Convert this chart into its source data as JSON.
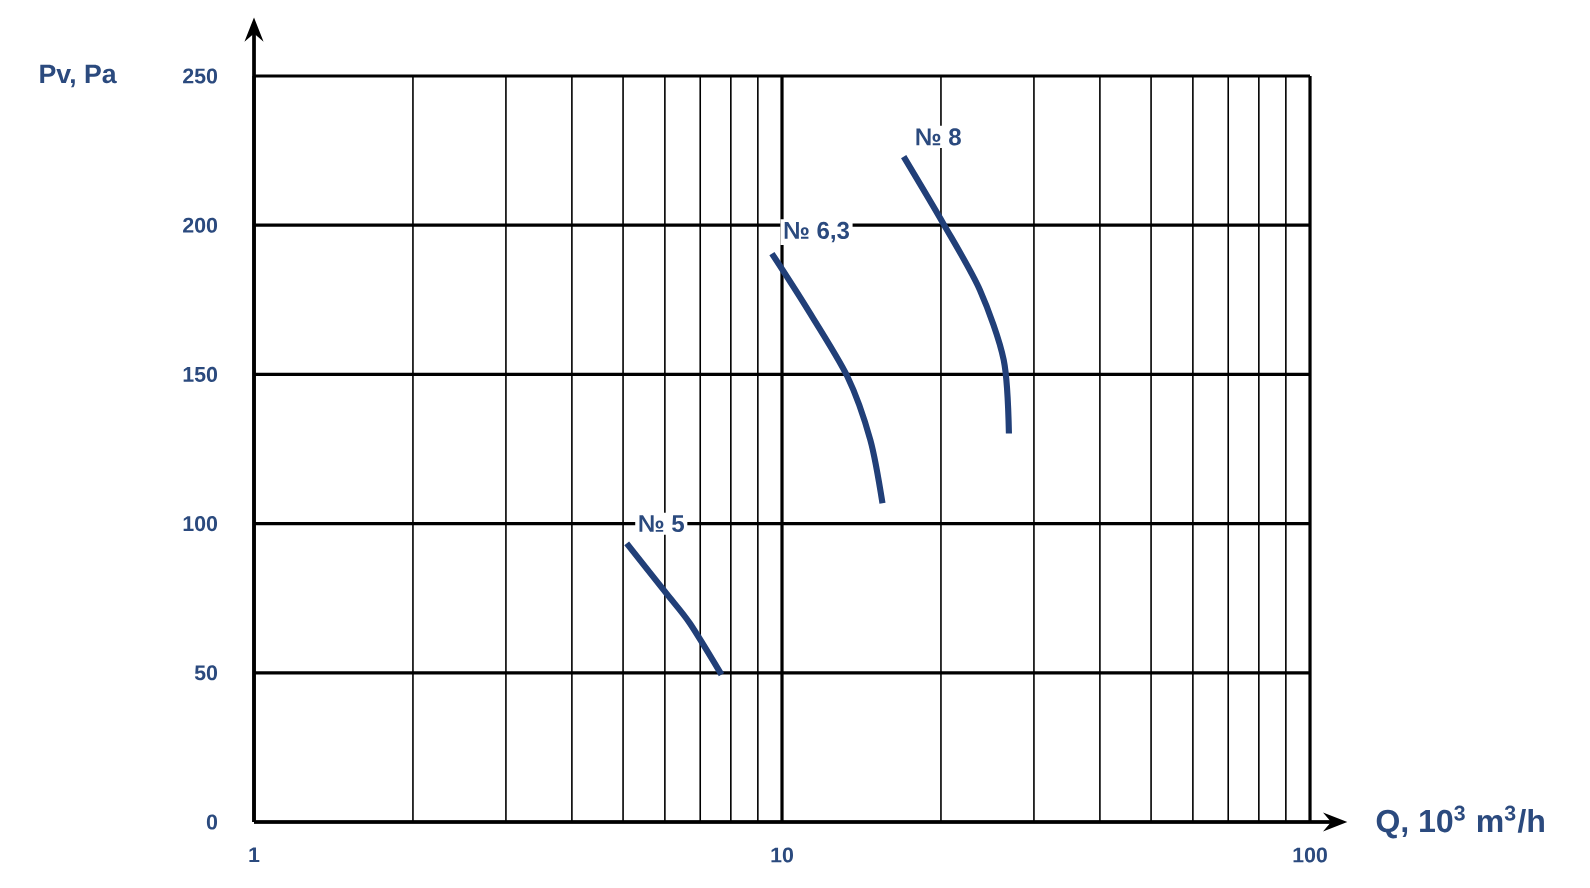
{
  "chart_data": {
    "type": "line",
    "xlabel": "Q, 10$^{3}$ m$^{3}$/h",
    "ylabel": "Pv, Pa",
    "log": "x",
    "grid": true,
    "xlim": [
      1,
      100
    ],
    "xticks": [
      1,
      10,
      100
    ],
    "ylim": [
      0,
      250
    ],
    "yticks": [
      0,
      50,
      100,
      150,
      200,
      250
    ],
    "series": [
      {
        "name": "№ 5",
        "color": "#213f78",
        "x": [
          5.08,
          6.04,
          6.69,
          7.68
        ],
        "values": [
          93.4,
          76.6,
          66.6,
          49.4
        ]
      },
      {
        "name": "№ 6,3",
        "color": "#213f78",
        "x": [
          9.57,
          11.1,
          13.3,
          14.7,
          15.5
        ],
        "values": [
          190.5,
          172.7,
          149.3,
          128,
          106.8
        ]
      },
      {
        "name": "№ 8",
        "color": "#213f78",
        "x": [
          17.0,
          20.2,
          23.7,
          26.3,
          26.9
        ],
        "values": [
          223,
          200.6,
          178.3,
          154.8,
          130.2
        ]
      }
    ]
  }
}
